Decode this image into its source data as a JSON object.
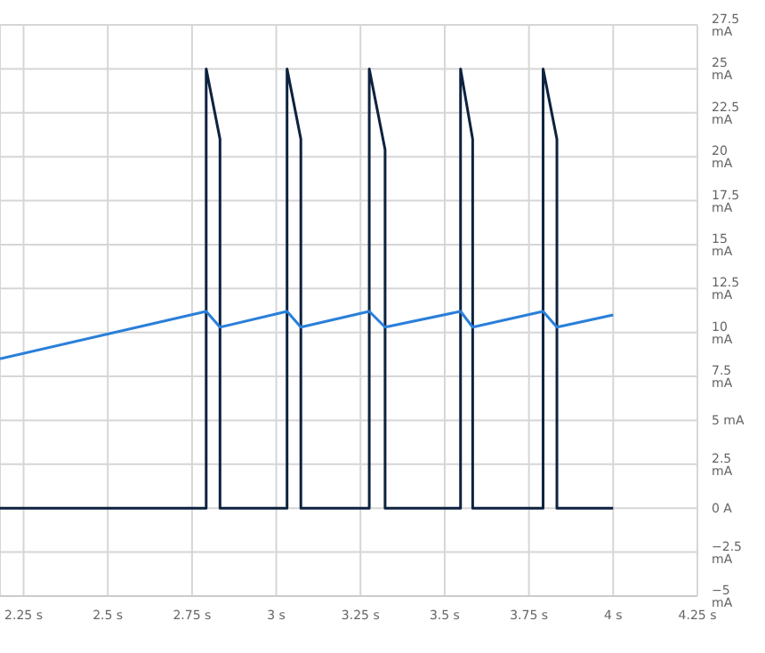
{
  "chart_data": {
    "type": "line",
    "xlim": [
      2.18,
      4.25
    ],
    "ylim": [
      -5,
      27.5
    ],
    "xticks": [
      {
        "value": 2.25,
        "label": "2.25 s"
      },
      {
        "value": 2.5,
        "label": "2.5 s"
      },
      {
        "value": 2.75,
        "label": "2.75 s"
      },
      {
        "value": 3,
        "label": "3 s"
      },
      {
        "value": 3.25,
        "label": "3.25 s"
      },
      {
        "value": 3.5,
        "label": "3.5 s"
      },
      {
        "value": 3.75,
        "label": "3.75 s"
      },
      {
        "value": 4,
        "label": "4 s"
      },
      {
        "value": 4.25,
        "label": "4.25 s"
      }
    ],
    "yticks": [
      {
        "value": -5,
        "label": "−5 mA"
      },
      {
        "value": -2.5,
        "label": "−2.5 mA"
      },
      {
        "value": 0,
        "label": "0 A"
      },
      {
        "value": 2.5,
        "label": "2.5 mA"
      },
      {
        "value": 5,
        "label": "5 mA"
      },
      {
        "value": 7.5,
        "label": "7.5 mA"
      },
      {
        "value": 10,
        "label": "10 mA"
      },
      {
        "value": 12.5,
        "label": "12.5 mA"
      },
      {
        "value": 15,
        "label": "15 mA"
      },
      {
        "value": 17.5,
        "label": "17.5 mA"
      },
      {
        "value": 20,
        "label": "20 mA"
      },
      {
        "value": 22.5,
        "label": "22.5 mA"
      },
      {
        "value": 25,
        "label": "25 mA"
      },
      {
        "value": 27.5,
        "label": "27.5 mA"
      }
    ],
    "grid": true,
    "marker": "none",
    "line_style": "solid",
    "series": [
      {
        "color": "#0d2240",
        "x": [
          2.18,
          2.792,
          2.792,
          2.833,
          2.833,
          3.032,
          3.032,
          3.073,
          3.073,
          3.276,
          3.276,
          3.323,
          3.323,
          3.547,
          3.547,
          3.583,
          3.583,
          3.792,
          3.792,
          3.833,
          3.833,
          4.0
        ],
        "values": [
          0,
          0,
          25,
          21,
          0,
          0,
          25,
          21,
          0,
          0,
          25,
          20.4,
          0,
          0,
          25,
          21,
          0,
          0,
          25,
          21,
          0,
          0
        ]
      },
      {
        "color": "#2a7fd9",
        "x": [
          2.18,
          2.792,
          2.833,
          3.032,
          3.073,
          3.276,
          3.323,
          3.547,
          3.583,
          3.792,
          3.833,
          4.0
        ],
        "values": [
          8.5,
          11.2,
          10.3,
          11.2,
          10.3,
          11.2,
          10.3,
          11.2,
          10.3,
          11.2,
          10.3,
          11.0
        ]
      }
    ]
  }
}
